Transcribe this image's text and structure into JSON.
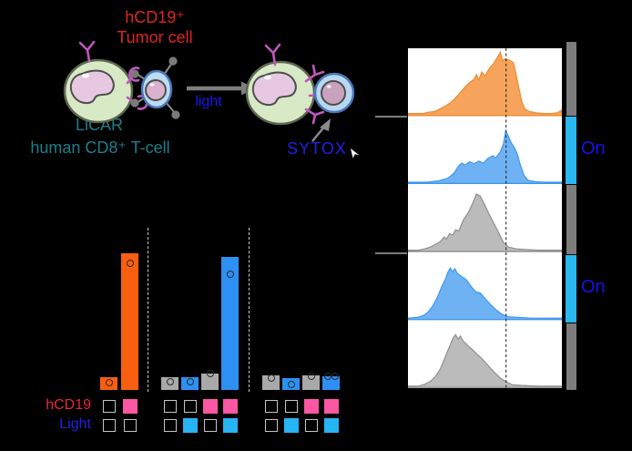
{
  "figure": {
    "background": "#000000"
  },
  "schematic": {
    "tumor_label": {
      "line1": "hCD19⁺",
      "line2": "Tumor cell",
      "color": "#DE2420"
    },
    "tcell_label": {
      "line1": "LiCAR",
      "line2": "human CD8⁺ T-cell",
      "color": "#1B7F8C"
    },
    "arrow_label": {
      "text": "light",
      "color": "#1A18EE"
    },
    "sytox_label": {
      "text": "SYTOX",
      "color": "#2220E6"
    }
  },
  "sidebar": {
    "color_off": "#7D7D7D",
    "color_on": "#29B8F0",
    "label_color": "#1513EA",
    "segments": [
      {
        "on": false,
        "label": ""
      },
      {
        "on": true,
        "label": "On"
      },
      {
        "on": false,
        "label": ""
      },
      {
        "on": true,
        "label": "On"
      },
      {
        "on": false,
        "label": ""
      }
    ]
  },
  "chart_data": [
    {
      "type": "area",
      "description": "Five stacked flow-cytometry (SYTOX) histograms with a dashed gate line; cyan side-bar segments mark light ON rows",
      "gate_line_x": 0.637,
      "grid": false,
      "axes_visible": false,
      "colors": {
        "orange": {
          "fill": "#F6A45B",
          "stroke": "#EE8A2F"
        },
        "blue": {
          "fill": "#6FB2F3",
          "stroke": "#3E97EE"
        },
        "gray": {
          "fill": "#BBBBBB",
          "stroke": "#8F8F8F"
        }
      },
      "panels": [
        {
          "color_name": "orange",
          "light": "Off",
          "points": [
            [
              0,
              0.03
            ],
            [
              0.1,
              0.03
            ],
            [
              0.13,
              0.05
            ],
            [
              0.17,
              0.06
            ],
            [
              0.2,
              0.09
            ],
            [
              0.24,
              0.14
            ],
            [
              0.28,
              0.2
            ],
            [
              0.31,
              0.27
            ],
            [
              0.34,
              0.35
            ],
            [
              0.37,
              0.43
            ],
            [
              0.4,
              0.5
            ],
            [
              0.43,
              0.55
            ],
            [
              0.445,
              0.62
            ],
            [
              0.46,
              0.54
            ],
            [
              0.48,
              0.66
            ],
            [
              0.5,
              0.6
            ],
            [
              0.53,
              0.72
            ],
            [
              0.56,
              0.8
            ],
            [
              0.585,
              0.9
            ],
            [
              0.6,
              0.96
            ],
            [
              0.615,
              0.83
            ],
            [
              0.63,
              0.86
            ],
            [
              0.66,
              0.84
            ],
            [
              0.685,
              0.8
            ],
            [
              0.7,
              0.65
            ],
            [
              0.72,
              0.42
            ],
            [
              0.74,
              0.2
            ],
            [
              0.76,
              0.1
            ],
            [
              0.79,
              0.06
            ],
            [
              0.83,
              0.04
            ],
            [
              0.88,
              0.03
            ],
            [
              0.93,
              0.03
            ],
            [
              0.97,
              0.04
            ],
            [
              1,
              0.08
            ]
          ]
        },
        {
          "color_name": "blue",
          "light": "On",
          "points": [
            [
              0,
              0.02
            ],
            [
              0.12,
              0.02
            ],
            [
              0.2,
              0.04
            ],
            [
              0.26,
              0.08
            ],
            [
              0.3,
              0.16
            ],
            [
              0.33,
              0.27
            ],
            [
              0.35,
              0.31
            ],
            [
              0.37,
              0.28
            ],
            [
              0.4,
              0.33
            ],
            [
              0.43,
              0.3
            ],
            [
              0.46,
              0.34
            ],
            [
              0.49,
              0.31
            ],
            [
              0.52,
              0.38
            ],
            [
              0.55,
              0.42
            ],
            [
              0.57,
              0.39
            ],
            [
              0.6,
              0.48
            ],
            [
              0.62,
              0.6
            ],
            [
              0.635,
              0.8
            ],
            [
              0.65,
              0.73
            ],
            [
              0.67,
              0.62
            ],
            [
              0.69,
              0.55
            ],
            [
              0.71,
              0.45
            ],
            [
              0.73,
              0.28
            ],
            [
              0.755,
              0.12
            ],
            [
              0.78,
              0.05
            ],
            [
              0.82,
              0.03
            ],
            [
              0.88,
              0.02
            ],
            [
              1,
              0.02
            ]
          ]
        },
        {
          "color_name": "gray",
          "light": "Off",
          "points": [
            [
              0,
              0.02
            ],
            [
              0.07,
              0.02
            ],
            [
              0.11,
              0.04
            ],
            [
              0.15,
              0.07
            ],
            [
              0.18,
              0.11
            ],
            [
              0.21,
              0.15
            ],
            [
              0.235,
              0.22
            ],
            [
              0.25,
              0.19
            ],
            [
              0.27,
              0.27
            ],
            [
              0.29,
              0.25
            ],
            [
              0.31,
              0.33
            ],
            [
              0.33,
              0.31
            ],
            [
              0.36,
              0.48
            ],
            [
              0.39,
              0.58
            ],
            [
              0.42,
              0.73
            ],
            [
              0.445,
              0.87
            ],
            [
              0.47,
              0.84
            ],
            [
              0.5,
              0.7
            ],
            [
              0.53,
              0.55
            ],
            [
              0.56,
              0.42
            ],
            [
              0.59,
              0.28
            ],
            [
              0.62,
              0.14
            ],
            [
              0.65,
              0.07
            ],
            [
              0.7,
              0.04
            ],
            [
              0.76,
              0.03
            ],
            [
              0.85,
              0.02
            ],
            [
              1,
              0.02
            ]
          ]
        },
        {
          "color_name": "blue",
          "light": "On",
          "points": [
            [
              0,
              0.02
            ],
            [
              0.06,
              0.03
            ],
            [
              0.1,
              0.06
            ],
            [
              0.13,
              0.11
            ],
            [
              0.16,
              0.2
            ],
            [
              0.19,
              0.33
            ],
            [
              0.22,
              0.5
            ],
            [
              0.245,
              0.62
            ],
            [
              0.26,
              0.72
            ],
            [
              0.275,
              0.78
            ],
            [
              0.29,
              0.72
            ],
            [
              0.305,
              0.77
            ],
            [
              0.32,
              0.7
            ],
            [
              0.35,
              0.65
            ],
            [
              0.38,
              0.6
            ],
            [
              0.41,
              0.5
            ],
            [
              0.44,
              0.42
            ],
            [
              0.47,
              0.4
            ],
            [
              0.5,
              0.32
            ],
            [
              0.53,
              0.24
            ],
            [
              0.57,
              0.15
            ],
            [
              0.61,
              0.08
            ],
            [
              0.65,
              0.04
            ],
            [
              0.72,
              0.03
            ],
            [
              0.8,
              0.02
            ],
            [
              1,
              0.02
            ]
          ]
        },
        {
          "color_name": "gray",
          "light": "Off",
          "points": [
            [
              0,
              0.02
            ],
            [
              0.07,
              0.02
            ],
            [
              0.11,
              0.05
            ],
            [
              0.15,
              0.1
            ],
            [
              0.18,
              0.17
            ],
            [
              0.21,
              0.28
            ],
            [
              0.24,
              0.45
            ],
            [
              0.27,
              0.62
            ],
            [
              0.295,
              0.76
            ],
            [
              0.31,
              0.8
            ],
            [
              0.325,
              0.73
            ],
            [
              0.34,
              0.78
            ],
            [
              0.36,
              0.7
            ],
            [
              0.39,
              0.63
            ],
            [
              0.42,
              0.57
            ],
            [
              0.45,
              0.5
            ],
            [
              0.48,
              0.44
            ],
            [
              0.51,
              0.36
            ],
            [
              0.54,
              0.28
            ],
            [
              0.57,
              0.21
            ],
            [
              0.6,
              0.14
            ],
            [
              0.64,
              0.08
            ],
            [
              0.68,
              0.04
            ],
            [
              0.74,
              0.03
            ],
            [
              0.85,
              0.02
            ],
            [
              1,
              0.02
            ]
          ]
        }
      ]
    },
    {
      "type": "bar",
      "description": "Cytotoxicity bars (no axis shown); heights in relative pixel units, open-circle replicate markers",
      "units": "relative (no axis shown)",
      "axes_visible": false,
      "colors": {
        "orange": "#F95F0F",
        "blue": "#2E90F2",
        "gray": "#A9A9A9"
      },
      "groups": [
        {
          "bars": [
            {
              "color": "orange",
              "height": 14,
              "marker_offsets": [
                [
                  0,
                  6
                ]
              ]
            },
            {
              "color": "orange",
              "height": 150,
              "marker_offsets": [
                [
                  0,
                  11
                ]
              ]
            }
          ]
        },
        {
          "bars": [
            {
              "color": "gray",
              "height": 14,
              "marker_offsets": [
                [
                  0,
                  5
                ]
              ]
            },
            {
              "color": "blue",
              "height": 14,
              "marker_offsets": [
                [
                  0,
                  5
                ]
              ]
            },
            {
              "color": "gray",
              "height": 18,
              "marker_offsets": [
                [
                  0,
                  0
                ]
              ]
            },
            {
              "color": "blue",
              "height": 146,
              "marker_offsets": [
                [
                  0,
                  19
                ]
              ]
            }
          ]
        },
        {
          "bars": [
            {
              "color": "gray",
              "height": 16,
              "marker_offsets": [
                [
                  0,
                  3
                ]
              ]
            },
            {
              "color": "blue",
              "height": 13,
              "marker_offsets": [
                [
                  0,
                  7
                ]
              ]
            },
            {
              "color": "gray",
              "height": 16,
              "marker_offsets": [
                [
                  0,
                  1
                ]
              ]
            },
            {
              "color": "blue",
              "height": 15,
              "marker_offsets": [
                [
                  -4,
                  0
                ],
                [
                  4,
                  0
                ]
              ]
            }
          ]
        }
      ],
      "condition_rows": [
        {
          "label": "hCD19",
          "label_color": "#E8283C",
          "fill_color": "#FB57A2",
          "checked": [
            [
              false,
              true
            ],
            [
              false,
              false,
              true,
              true
            ],
            [
              false,
              false,
              true,
              true
            ]
          ]
        },
        {
          "label": "Light",
          "label_color": "#2222E0",
          "fill_color": "#27B4F2",
          "checked": [
            [
              false,
              false
            ],
            [
              false,
              true,
              false,
              true
            ],
            [
              false,
              true,
              false,
              true
            ]
          ]
        }
      ]
    }
  ]
}
